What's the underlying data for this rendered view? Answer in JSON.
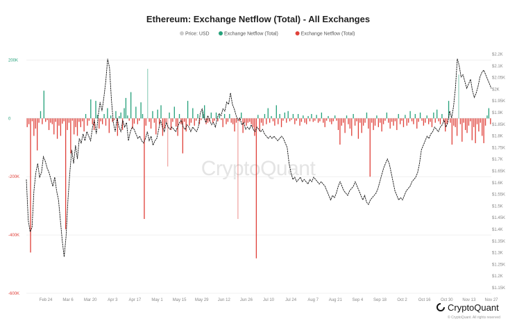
{
  "chart_data": {
    "type": "bar+line",
    "title": "Ethereum: Exchange Netflow (Total) - All Exchanges",
    "legend": {
      "position": "top-center",
      "items": [
        {
          "label": "Price: USD",
          "color": "#cccccc"
        },
        {
          "label": "Exchange Netflow (Total)",
          "color": "#26a17b"
        },
        {
          "label": "Exchange Netflow (Total)",
          "color": "#e0413a"
        }
      ]
    },
    "left_axis": {
      "range": [
        -600000,
        220000
      ],
      "ticks": [
        {
          "value": 200000,
          "label": "200K",
          "color": "#26a17b"
        },
        {
          "value": 0,
          "label": "0",
          "color": "#26a17b"
        },
        {
          "value": -200000,
          "label": "-200K",
          "color": "#e0413a"
        },
        {
          "value": -400000,
          "label": "-400K",
          "color": "#e0413a"
        },
        {
          "value": -600000,
          "label": "-600K",
          "color": "#e0413a"
        }
      ]
    },
    "right_axis": {
      "range": [
        1150,
        2200
      ],
      "ticks": [
        "$2.2K",
        "$2.1K",
        "$2.05K",
        "$2K",
        "$1.95K",
        "$1.9K",
        "$1.85K",
        "$1.8K",
        "$1.75K",
        "$1.7K",
        "$1.65K",
        "$1.6K",
        "$1.55K",
        "$1.5K",
        "$1.45K",
        "$1.4K",
        "$1.35K",
        "$1.3K",
        "$1.25K",
        "$1.2K",
        "$1.15K"
      ]
    },
    "x_ticks": [
      "Feb 24",
      "Mar 6",
      "Mar 20",
      "Apr 3",
      "Apr 17",
      "May 1",
      "May 15",
      "May 29",
      "Jun 12",
      "Jun 26",
      "Jul 10",
      "Jul 24",
      "Aug 7",
      "Aug 21",
      "Sep 4",
      "Sep 18",
      "Oct 2",
      "Oct 16",
      "Oct 30",
      "Nov 13",
      "Nov 27"
    ],
    "netflow_series": {
      "name": "Exchange Netflow (Total)",
      "positive_color": "#26a17b",
      "negative_color": "#e0413a",
      "values": [
        -30000,
        -20000,
        -460000,
        -10000,
        -60000,
        -35000,
        -110000,
        -15000,
        25000,
        -20000,
        95000,
        -12000,
        -6000,
        -40000,
        -15000,
        -20000,
        -55000,
        -12000,
        -70000,
        -25000,
        -60000,
        -18000,
        -10000,
        -380000,
        -40000,
        -15000,
        -120000,
        -8000,
        -55000,
        -30000,
        -60000,
        -12000,
        -30000,
        -10000,
        -45000,
        15000,
        -25000,
        -8000,
        65000,
        -20000,
        -40000,
        60000,
        12000,
        -35000,
        -10000,
        -20000,
        15000,
        -25000,
        35000,
        -50000,
        10000,
        -12000,
        -6000,
        25000,
        -60000,
        8000,
        20000,
        -40000,
        35000,
        70000,
        10000,
        -8000,
        90000,
        -35000,
        -18000,
        40000,
        -20000,
        -8000,
        55000,
        15000,
        -345000,
        -25000,
        170000,
        -12000,
        -35000,
        25000,
        -15000,
        -55000,
        30000,
        -20000,
        45000,
        -60000,
        -35000,
        -15000,
        -165000,
        20000,
        -40000,
        -12000,
        40000,
        -28000,
        -60000,
        15000,
        -20000,
        -120000,
        -12000,
        -45000,
        60000,
        -25000,
        -15000,
        35000,
        -25000,
        -8000,
        15000,
        -20000,
        -6000,
        25000,
        45000,
        -20000,
        -15000,
        -10000,
        20000,
        -15000,
        -8000,
        20000,
        -10000,
        12000,
        -5000,
        -30000,
        15000,
        -20000,
        -12000,
        15000,
        -15000,
        -20000,
        -45000,
        -15000,
        -345000,
        -10000,
        20000,
        -50000,
        -15000,
        -25000,
        -15000,
        -12000,
        -20000,
        -30000,
        -60000,
        -480000,
        12000,
        -45000,
        -15000,
        -25000,
        15000,
        -20000,
        35000,
        -15000,
        8000,
        -10000,
        -25000,
        45000,
        -20000,
        15000,
        -30000,
        -8000,
        20000,
        -15000,
        25000,
        -10000,
        -5000,
        15000,
        -20000,
        -8000,
        15000,
        -25000,
        -12000,
        10000,
        -15000,
        -20000,
        8000,
        -10000,
        15000,
        -12000,
        -8000,
        12000,
        -15000,
        -10000,
        20000,
        -15000,
        -30000,
        -8000,
        8000,
        -12000,
        -20000,
        -10000,
        10000,
        -8000,
        -40000,
        -90000,
        -25000,
        -15000,
        -50000,
        10000,
        -20000,
        -35000,
        -60000,
        15000,
        -25000,
        -10000,
        -70000,
        -15000,
        -50000,
        -25000,
        -15000,
        20000,
        -35000,
        -200000,
        -15000,
        -40000,
        -25000,
        10000,
        -30000,
        -15000,
        -45000,
        -20000,
        -8000,
        20000,
        -15000,
        -35000,
        -12000,
        -25000,
        -10000,
        -40000,
        15000,
        -20000,
        -8000,
        -30000,
        12000,
        -25000,
        -15000,
        25000,
        -10000,
        -20000,
        15000,
        -35000,
        -12000,
        20000,
        -8000,
        -25000,
        -15000,
        10000,
        -20000,
        -12000,
        -30000,
        20000,
        -15000,
        30000,
        -10000,
        -20000,
        15000,
        -12000,
        -45000,
        -20000,
        60000,
        -15000,
        -90000,
        -25000,
        -30000,
        -60000,
        150000,
        -20000,
        -80000,
        -15000,
        -40000,
        -50000,
        -25000,
        -10000,
        -75000,
        -30000,
        -85000,
        -20000,
        -45000,
        -15000,
        -60000,
        -85000,
        -25000,
        10000,
        35000,
        -20000
      ]
    },
    "price_series": {
      "name": "Price: USD",
      "color": "#111111",
      "values": [
        1650,
        1470,
        1420,
        1440,
        1600,
        1680,
        1720,
        1660,
        1680,
        1750,
        1730,
        1700,
        1680,
        1650,
        1620,
        1660,
        1600,
        1560,
        1470,
        1380,
        1310,
        1400,
        1560,
        1680,
        1780,
        1720,
        1800,
        1740,
        1830,
        1810,
        1850,
        1820,
        1860,
        1840,
        1820,
        1880,
        1910,
        1850,
        1930,
        1990,
        1950,
        2010,
        2080,
        2180,
        2140,
        2000,
        1900,
        1860,
        1920,
        1880,
        1860,
        1910,
        1880,
        1900,
        1820,
        1860,
        1880,
        1870,
        1850,
        1830,
        1840,
        1820,
        1810,
        1830,
        1860,
        1820,
        1840,
        1800,
        1820,
        1830,
        1870,
        1910,
        1880,
        1860,
        1900,
        1880,
        1870,
        1880,
        1870,
        1860,
        1880,
        1900,
        1910,
        1880,
        1870,
        1890,
        1880,
        1860,
        1880,
        1870,
        1860,
        1880,
        1940,
        1960,
        1920,
        1900,
        1930,
        1910,
        1890,
        1900,
        1880,
        1920,
        1940,
        1930,
        1960,
        1950,
        1990,
        1980,
        2030,
        1980,
        1960,
        1930,
        1910,
        1920,
        1890,
        1900,
        1870,
        1880,
        1870,
        1890,
        1870,
        1860,
        1880,
        1870,
        1860,
        1870,
        1850,
        1840,
        1830,
        1840,
        1830,
        1840,
        1830,
        1820,
        1830,
        1840,
        1830,
        1810,
        1790,
        1720,
        1680,
        1650,
        1660,
        1640,
        1650,
        1660,
        1640,
        1650,
        1640,
        1630,
        1650,
        1640,
        1660,
        1650,
        1640,
        1630,
        1640,
        1630,
        1620,
        1600,
        1580,
        1560,
        1580,
        1570,
        1590,
        1620,
        1640,
        1620,
        1600,
        1590,
        1580,
        1600,
        1610,
        1620,
        1640,
        1620,
        1600,
        1580,
        1560,
        1580,
        1550,
        1540,
        1560,
        1570,
        1580,
        1590,
        1610,
        1640,
        1670,
        1700,
        1720,
        1740,
        1720,
        1680,
        1640,
        1600,
        1580,
        1560,
        1570,
        1560,
        1580,
        1600,
        1610,
        1620,
        1640,
        1650,
        1660,
        1680,
        1720,
        1780,
        1800,
        1820,
        1840,
        1830,
        1850,
        1860,
        1880,
        1870,
        1860,
        1880,
        1890,
        1910,
        1880,
        1900,
        1950,
        1920,
        1970,
        2050,
        2180,
        2150,
        2100,
        2110,
        2080,
        2050,
        2070,
        2090,
        2040,
        2010,
        2030,
        2060,
        2100,
        2120,
        2130,
        2110,
        2090,
        2070,
        2050
      ]
    },
    "watermark": "CryptoQuant",
    "branding": {
      "name": "CryptoQuant",
      "copyright": "© CryptoQuant. All rights reserved"
    }
  }
}
